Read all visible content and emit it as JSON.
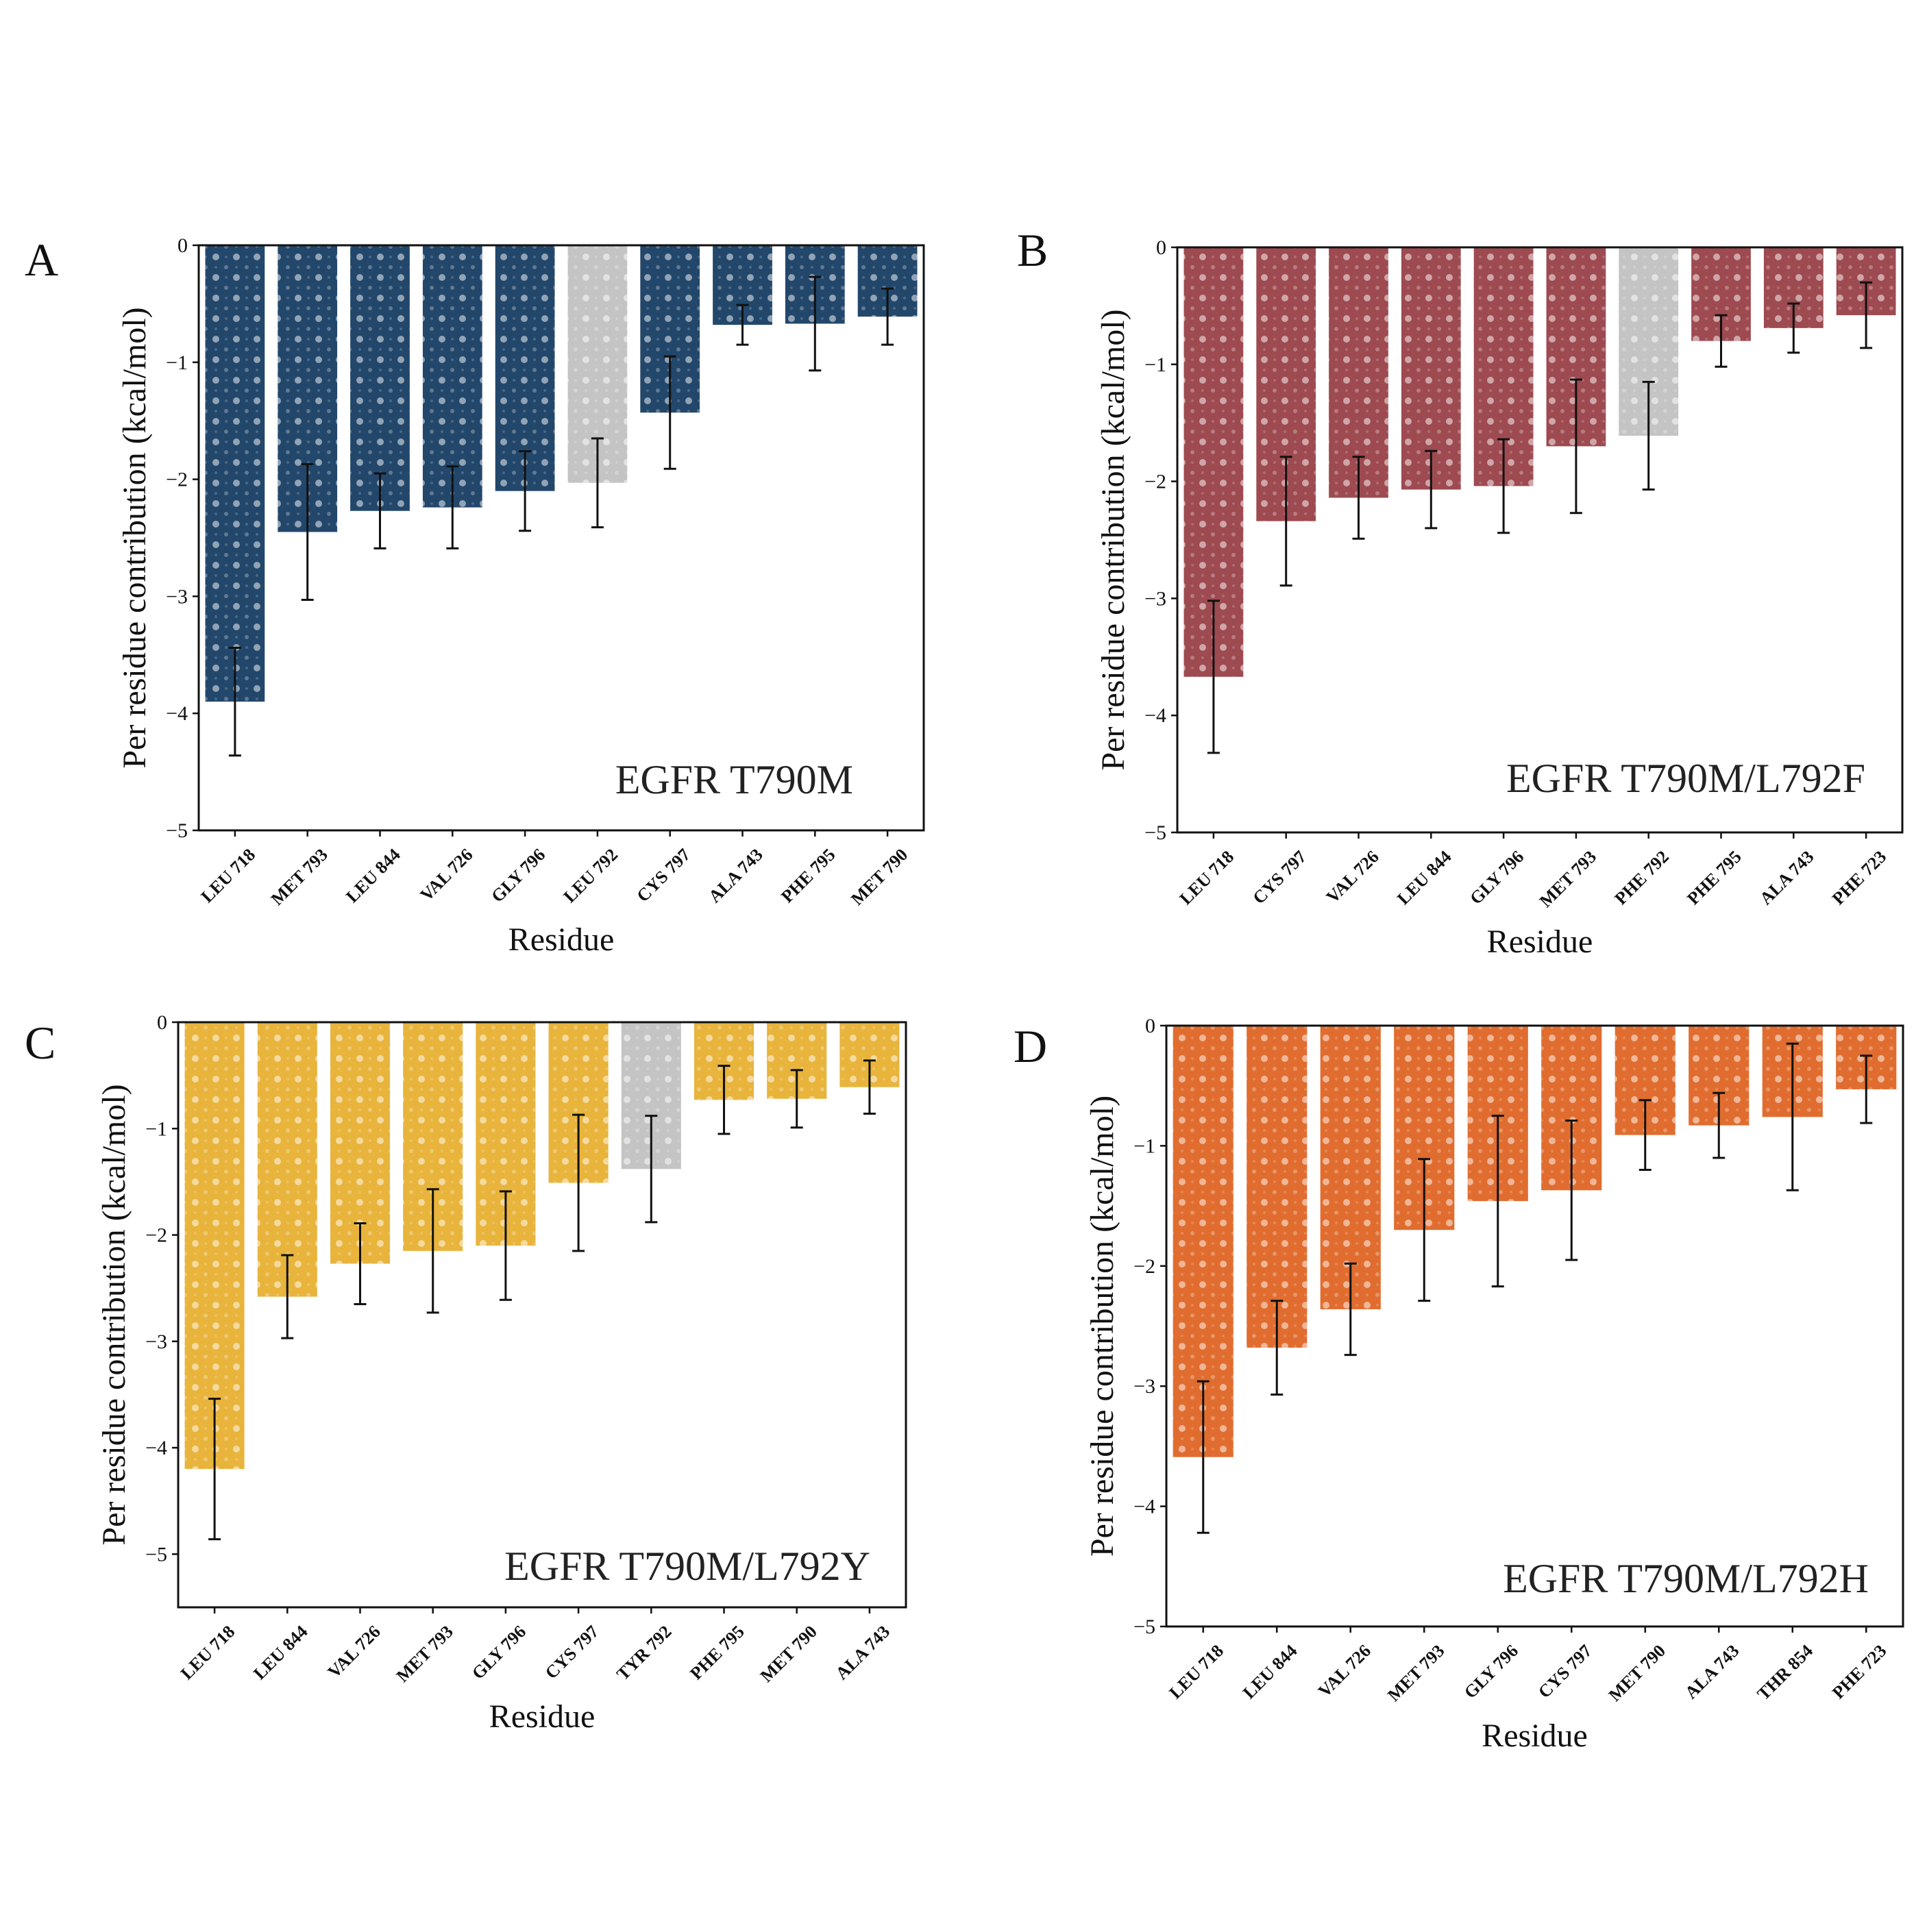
{
  "colors": {
    "A": "#22476b",
    "B": "#9e4a51",
    "C": "#e8b43c",
    "D": "#e06d2f",
    "highlight": "#c4c4c4",
    "errorbar": "#111111"
  },
  "chart_data": [
    {
      "type": "bar",
      "panel": "A",
      "annotation": "EGFR T790M",
      "xlabel": "Residue",
      "ylabel": "Per residue contribution (kcal/mol)",
      "ylim": [
        -5,
        0
      ],
      "yticks": [
        0,
        -1,
        -2,
        -3,
        -4,
        -5
      ],
      "ytick_labels": [
        "0",
        "−1",
        "−2",
        "−3",
        "−4",
        "−5"
      ],
      "grid": false,
      "categories": [
        "LEU 718",
        "MET 793",
        "LEU 844",
        "VAL 726",
        "GLY 796",
        "LEU 792",
        "CYS 797",
        "ALA 743",
        "PHE 795",
        "MET 790"
      ],
      "values": [
        -3.9,
        -2.45,
        -2.27,
        -2.24,
        -2.1,
        -2.03,
        -1.43,
        -0.68,
        -0.67,
        -0.61
      ],
      "errors": [
        0.46,
        0.58,
        0.32,
        0.35,
        0.34,
        0.38,
        0.48,
        0.17,
        0.4,
        0.24
      ],
      "highlight_index": 5
    },
    {
      "type": "bar",
      "panel": "B",
      "annotation": "EGFR T790M/L792F",
      "xlabel": "Residue",
      "ylabel": "Per residue contribution (kcal/mol)",
      "ylim": [
        -5,
        0
      ],
      "yticks": [
        0,
        -1,
        -2,
        -3,
        -4,
        -5
      ],
      "ytick_labels": [
        "0",
        "−1",
        "−2",
        "−3",
        "−4",
        "−5"
      ],
      "grid": false,
      "categories": [
        "LEU 718",
        "CYS 797",
        "VAL 726",
        "LEU 844",
        "GLY 796",
        "MET 793",
        "PHE 792",
        "PHE 795",
        "ALA 743",
        "PHE 723"
      ],
      "values": [
        -3.67,
        -2.34,
        -2.14,
        -2.07,
        -2.04,
        -1.7,
        -1.61,
        -0.8,
        -0.69,
        -0.58
      ],
      "errors": [
        0.65,
        0.55,
        0.35,
        0.33,
        0.4,
        0.57,
        0.46,
        0.22,
        0.21,
        0.28
      ],
      "highlight_index": 6
    },
    {
      "type": "bar",
      "panel": "C",
      "annotation": "EGFR T790M/L792Y",
      "xlabel": "Residue",
      "ylabel": "Per residue contribution (kcal/mol)",
      "ylim": [
        -5.5,
        0
      ],
      "yticks": [
        0,
        -1,
        -2,
        -3,
        -4,
        -5
      ],
      "ytick_labels": [
        "0",
        "−1",
        "−2",
        "−3",
        "−4",
        "−5"
      ],
      "grid": false,
      "categories": [
        "LEU 718",
        "LEU 844",
        "VAL 726",
        "MET 793",
        "GLY 796",
        "CYS 797",
        "TYR 792",
        "PHE 795",
        "MET 790",
        "ALA 743"
      ],
      "values": [
        -4.2,
        -2.58,
        -2.27,
        -2.15,
        -2.1,
        -1.51,
        -1.38,
        -0.73,
        -0.72,
        -0.61
      ],
      "errors": [
        0.66,
        0.39,
        0.38,
        0.58,
        0.51,
        0.64,
        0.5,
        0.32,
        0.27,
        0.25
      ],
      "highlight_index": 6
    },
    {
      "type": "bar",
      "panel": "D",
      "annotation": "EGFR T790M/L792H",
      "xlabel": "Residue",
      "ylabel": "Per residue contribution (kcal/mol)",
      "ylim": [
        -5,
        0
      ],
      "yticks": [
        0,
        -1,
        -2,
        -3,
        -4,
        -5
      ],
      "ytick_labels": [
        "0",
        "−1",
        "−2",
        "−3",
        "−4",
        "−5"
      ],
      "grid": false,
      "categories": [
        "LEU 718",
        "LEU 844",
        "VAL 726",
        "MET 793",
        "GLY 796",
        "CYS 797",
        "MET 790",
        "ALA 743",
        "THR 854",
        "PHE 723"
      ],
      "values": [
        -3.59,
        -2.68,
        -2.36,
        -1.7,
        -1.46,
        -1.37,
        -0.91,
        -0.83,
        -0.76,
        -0.53
      ],
      "errors": [
        0.63,
        0.39,
        0.38,
        0.59,
        0.71,
        0.58,
        0.29,
        0.27,
        0.61,
        0.28
      ],
      "highlight_index": -1
    }
  ]
}
